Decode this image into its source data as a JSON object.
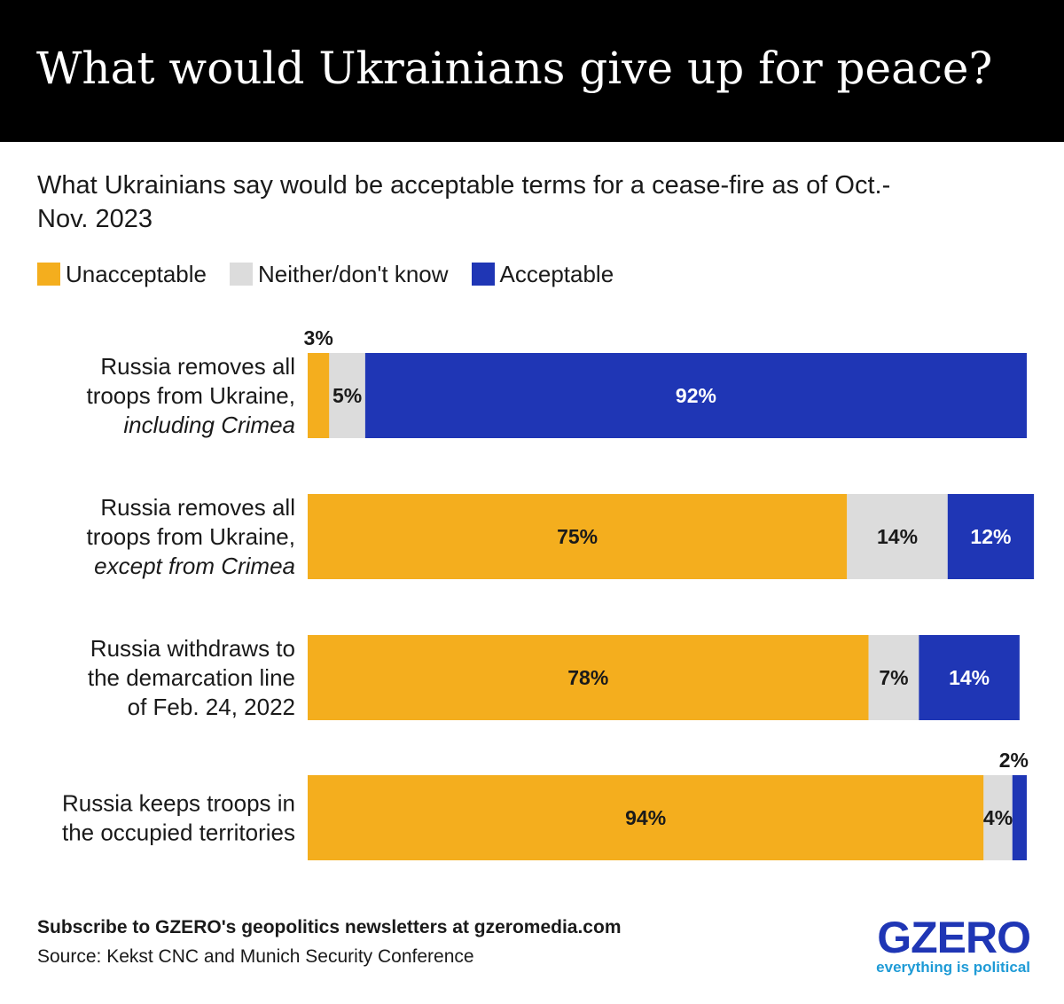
{
  "header": {
    "title": "What would Ukrainians give up for peace?"
  },
  "subtitle": "What Ukrainians say would be acceptable terms for a cease-fire as of Oct.-Nov. 2023",
  "legend": [
    {
      "label": "Unacceptable",
      "color": "#f4ae1e"
    },
    {
      "label": "Neither/don't know",
      "color": "#dcdcdc"
    },
    {
      "label": "Acceptable",
      "color": "#1f36b5"
    }
  ],
  "chart_data": {
    "type": "bar",
    "orientation": "horizontal",
    "stacked": true,
    "title": "What would Ukrainians give up for peace?",
    "subtitle": "What Ukrainians say would be acceptable terms for a cease-fire as of Oct.-Nov. 2023",
    "xlim": [
      0,
      100
    ],
    "grid": false,
    "legend_position": "top-left",
    "categories": [
      [
        {
          "text": "Russia removes all",
          "italic": false
        },
        {
          "text": "troops from Ukraine,",
          "italic": false
        },
        {
          "text": "including Crimea",
          "italic": true
        }
      ],
      [
        {
          "text": "Russia removes all",
          "italic": false
        },
        {
          "text": "troops from Ukraine,",
          "italic": false
        },
        {
          "text": "except from Crimea",
          "italic": true
        }
      ],
      [
        {
          "text": "Russia withdraws to",
          "italic": false
        },
        {
          "text": "the demarcation line",
          "italic": false
        },
        {
          "text": "of Feb. 24, 2022",
          "italic": false
        }
      ],
      [
        {
          "text": "Russia keeps troops in",
          "italic": false
        },
        {
          "text": "the occupied territories",
          "italic": false
        }
      ]
    ],
    "series": [
      {
        "name": "Unacceptable",
        "color": "#f4ae1e",
        "label_color": "#1a1a1a",
        "values": [
          3,
          75,
          78,
          94
        ]
      },
      {
        "name": "Neither/don't know",
        "color": "#dcdcdc",
        "label_color": "#1a1a1a",
        "values": [
          5,
          14,
          7,
          4
        ]
      },
      {
        "name": "Acceptable",
        "color": "#1f36b5",
        "label_color": "#ffffff",
        "values": [
          92,
          12,
          14,
          2
        ]
      }
    ],
    "value_labels": [
      [
        "3%",
        "5%",
        "92%"
      ],
      [
        "75%",
        "14%",
        "12%"
      ],
      [
        "78%",
        "7%",
        "14%"
      ],
      [
        "94%",
        "4%",
        "2%"
      ]
    ]
  },
  "footer": {
    "cta": "Subscribe to GZERO's geopolitics newsletters at gzeromedia.com",
    "source": "Source: Kekst CNC and Munich Security Conference"
  },
  "logo": {
    "word": "GZERO",
    "tagline": "everything is political"
  }
}
